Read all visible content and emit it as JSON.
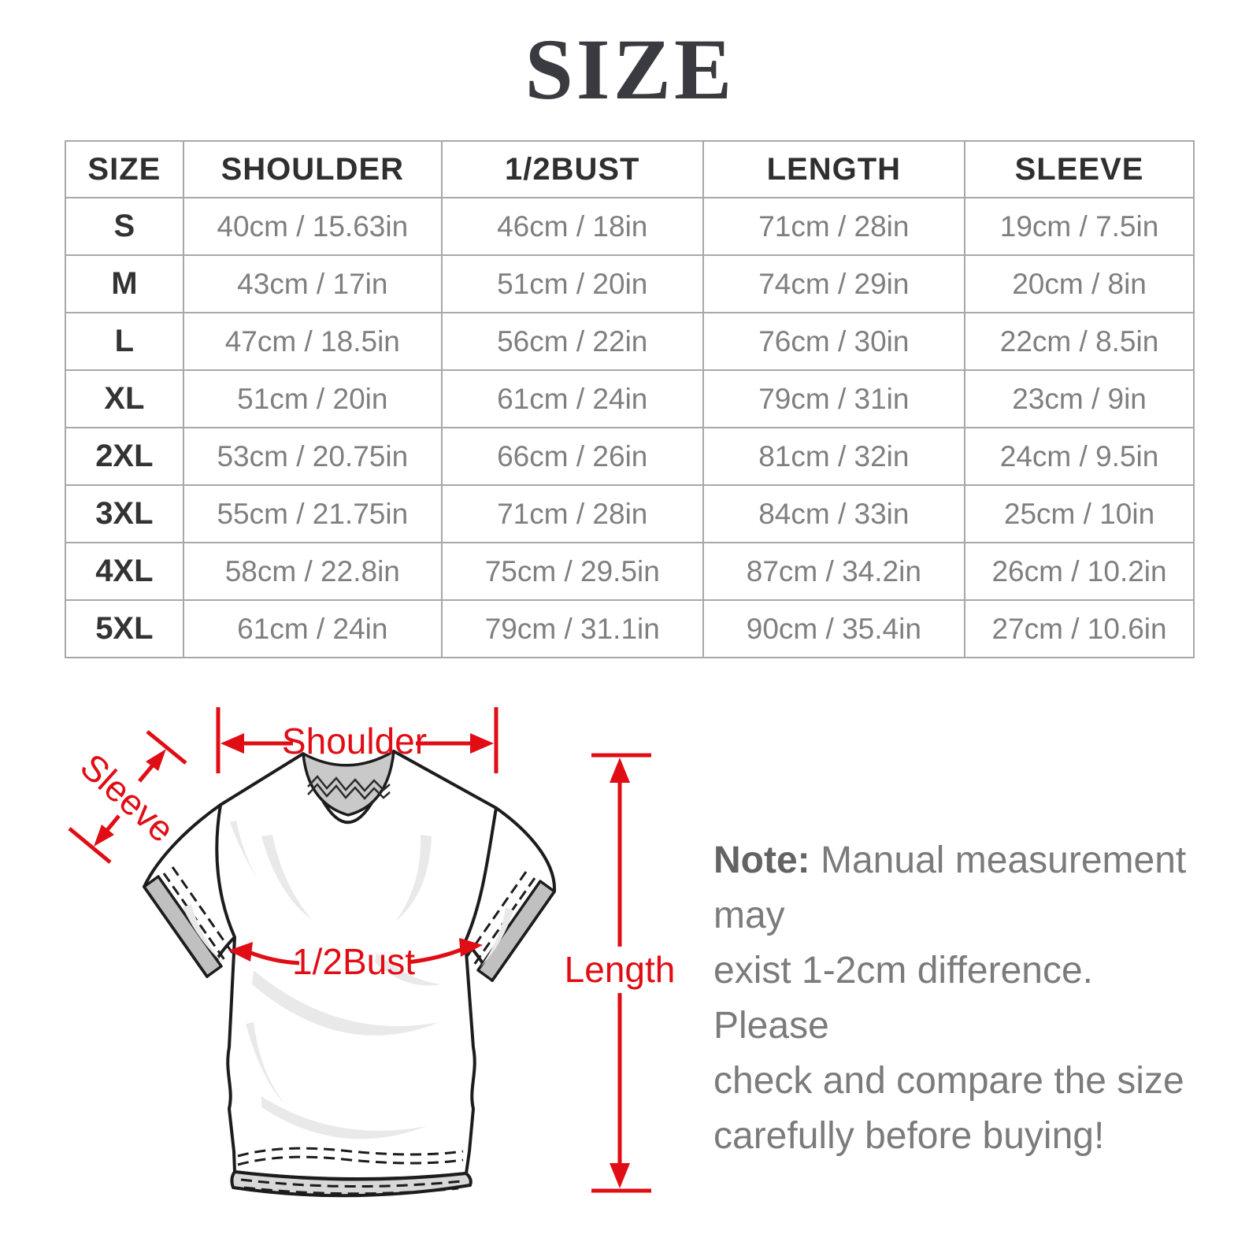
{
  "page": {
    "title": "SIZE"
  },
  "colors": {
    "accent_red": "#e00d15",
    "table_border": "#a8a8a8",
    "header_text": "#2f2f2f",
    "cell_text": "#7f7f7f",
    "note_text": "#7b7b7b",
    "collar_gray": "#c9c9c9",
    "cuff_gray": "#c0c0c0",
    "hem_gray": "#d8d8d8"
  },
  "table": {
    "columns": [
      "SIZE",
      "SHOULDER",
      "1/2BUST",
      "LENGTH",
      "SLEEVE"
    ],
    "rows": [
      {
        "size": "S",
        "cells": [
          "40cm / 15.63in",
          "46cm / 18in",
          "71cm / 28in",
          "19cm / 7.5in"
        ]
      },
      {
        "size": "M",
        "cells": [
          "43cm / 17in",
          "51cm / 20in",
          "74cm / 29in",
          "20cm / 8in"
        ]
      },
      {
        "size": "L",
        "cells": [
          "47cm / 18.5in",
          "56cm / 22in",
          "76cm / 30in",
          "22cm / 8.5in"
        ]
      },
      {
        "size": "XL",
        "cells": [
          "51cm / 20in",
          "61cm / 24in",
          "79cm / 31in",
          "23cm / 9in"
        ]
      },
      {
        "size": "2XL",
        "cells": [
          "53cm / 20.75in",
          "66cm / 26in",
          "81cm / 32in",
          "24cm / 9.5in"
        ]
      },
      {
        "size": "3XL",
        "cells": [
          "55cm / 21.75in",
          "71cm / 28in",
          "84cm / 33in",
          "25cm / 10in"
        ]
      },
      {
        "size": "4XL",
        "cells": [
          "58cm / 22.8in",
          "75cm / 29.5in",
          "87cm / 34.2in",
          "26cm / 10.2in"
        ]
      },
      {
        "size": "5XL",
        "cells": [
          "61cm / 24in",
          "79cm / 31.1in",
          "90cm / 35.4in",
          "27cm / 10.6in"
        ]
      }
    ]
  },
  "diagram": {
    "labels": {
      "shoulder": "Shoulder",
      "sleeve": "Sleeve",
      "half_bust": "1/2Bust",
      "length": "Length"
    }
  },
  "note": {
    "prefix": "Note:",
    "lines": [
      "Manual measurement may",
      "exist 1-2cm difference. Please",
      "check and compare the size",
      "carefully before buying!"
    ]
  }
}
